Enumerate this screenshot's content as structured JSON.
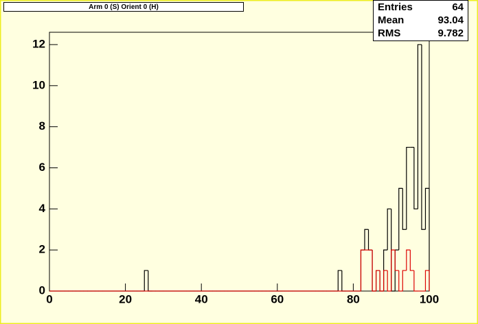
{
  "chart_data": {
    "type": "histogram",
    "title": "Arm 0 (S) Orient 0 (H)",
    "stats": {
      "labels": [
        "Entries",
        "Mean",
        "RMS"
      ],
      "values": [
        64,
        93.04,
        9.782
      ]
    },
    "bins": [
      0,
      1,
      2,
      3,
      4,
      5,
      6,
      7,
      8,
      9,
      10,
      11,
      12,
      13,
      14,
      15,
      16,
      17,
      18,
      19,
      20,
      21,
      22,
      23,
      24,
      25,
      26,
      27,
      28,
      29,
      30,
      31,
      32,
      33,
      34,
      35,
      36,
      37,
      38,
      39,
      40,
      41,
      42,
      43,
      44,
      45,
      46,
      47,
      48,
      49,
      50,
      51,
      52,
      53,
      54,
      55,
      56,
      57,
      58,
      59,
      60,
      61,
      62,
      63,
      64,
      65,
      66,
      67,
      68,
      69,
      70,
      71,
      72,
      73,
      74,
      75,
      76,
      77,
      78,
      79,
      80,
      81,
      82,
      83,
      84,
      85,
      86,
      87,
      88,
      89,
      90,
      91,
      92,
      93,
      94,
      95,
      96,
      97,
      98,
      99,
      100
    ],
    "series": [
      {
        "color": "#000000",
        "values": [
          0,
          0,
          0,
          0,
          0,
          0,
          0,
          0,
          0,
          0,
          0,
          0,
          0,
          0,
          0,
          0,
          0,
          0,
          0,
          0,
          0,
          0,
          0,
          0,
          0,
          1,
          0,
          0,
          0,
          0,
          0,
          0,
          0,
          0,
          0,
          0,
          0,
          0,
          0,
          0,
          0,
          0,
          0,
          0,
          0,
          0,
          0,
          0,
          0,
          0,
          0,
          0,
          0,
          0,
          0,
          0,
          0,
          0,
          0,
          0,
          0,
          0,
          0,
          0,
          0,
          0,
          0,
          0,
          0,
          0,
          0,
          0,
          0,
          0,
          0,
          0,
          1,
          0,
          0,
          0,
          0,
          0,
          2,
          3,
          2,
          0,
          1,
          0,
          2,
          4,
          0,
          2,
          5,
          3,
          7,
          7,
          4,
          12,
          3,
          5
        ]
      },
      {
        "color": "#dd0000",
        "values": [
          0,
          0,
          0,
          0,
          0,
          0,
          0,
          0,
          0,
          0,
          0,
          0,
          0,
          0,
          0,
          0,
          0,
          0,
          0,
          0,
          0,
          0,
          0,
          0,
          0,
          0,
          0,
          0,
          0,
          0,
          0,
          0,
          0,
          0,
          0,
          0,
          0,
          0,
          0,
          0,
          0,
          0,
          0,
          0,
          0,
          0,
          0,
          0,
          0,
          0,
          0,
          0,
          0,
          0,
          0,
          0,
          0,
          0,
          0,
          0,
          0,
          0,
          0,
          0,
          0,
          0,
          0,
          0,
          0,
          0,
          0,
          0,
          0,
          0,
          0,
          0,
          0,
          0,
          0,
          0,
          0,
          0,
          2,
          2,
          2,
          0,
          1,
          0,
          1,
          0,
          2,
          1,
          0,
          1,
          2,
          1,
          0,
          0,
          0,
          1
        ]
      }
    ],
    "xlim": [
      0,
      100
    ],
    "xticks": [
      0,
      20,
      40,
      60,
      80,
      100
    ],
    "ylim": [
      0,
      12.6
    ],
    "yticks": [
      0,
      2,
      4,
      6,
      8,
      10,
      12
    ]
  }
}
